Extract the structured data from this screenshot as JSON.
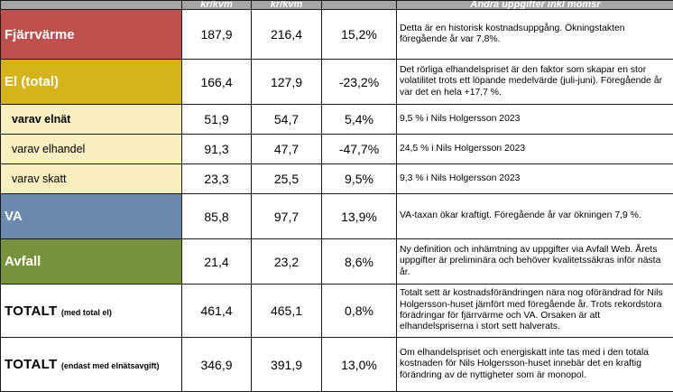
{
  "header": {
    "col1": "",
    "col2": "kr/kvm",
    "col3": "kr/kvm",
    "col4": "",
    "col5": "Andra uppgifter inkl momsr"
  },
  "rows": [
    {
      "label": "Fjärrvärme",
      "v1": "187,9",
      "v2": "216,4",
      "change": "15,2%",
      "note": "Detta är en historisk kostnadsuppgång. Ökningstakten föregående år var 7,8%."
    },
    {
      "label": "El (total)",
      "v1": "166,4",
      "v2": "127,9",
      "change": "-23,2%",
      "note": "Det rörliga elhandelspriset är den faktor som skapar en stor volatilitet trots ett löpande medelvärde (juli-juni). Föregående år var det en hela +17,7 %."
    },
    {
      "label": "varav elnät",
      "v1": "51,9",
      "v2": "54,7",
      "change": "5,4%",
      "note": "9,5  % i Nils Holgersson 2023"
    },
    {
      "label": "varav elhandel",
      "v1": "91,3",
      "v2": "47,7",
      "change": "-47,7%",
      "note": "24,5 % i Nils Holgersson 2023"
    },
    {
      "label": "varav skatt",
      "v1": "23,3",
      "v2": "25,5",
      "change": "9,5%",
      "note": "9,3 % i Nils Holgersson 2023"
    },
    {
      "label": "VA",
      "v1": "85,8",
      "v2": "97,7",
      "change": "13,9%",
      "note": "VA-taxan ökar kraftigt. Föregående år var ökningen 7,9 %."
    },
    {
      "label": "Avfall",
      "v1": "21,4",
      "v2": "23,2",
      "change": "8,6%",
      "note": "Ny definition och inhämtning av uppgifter via Avfall Web. Årets uppgifter är preliminära och behöver kvalitetssäkras inför nästa år."
    },
    {
      "label": "TOTALT",
      "label_small": "(med total el)",
      "v1": "461,4",
      "v2": "465,1",
      "change": "0,8%",
      "note": "Totalt sett är kostnadsförändringen nära nog oförändrad för Nils Holgersson-huset  jämfört med föregående år. Trots rekordstora förädringar för fjärrvärme och VA. Orsaken är att elhandelspriserna i stort sett halverats."
    },
    {
      "label": "TOTALT",
      "label_small": "(endast med elnätsavgift)",
      "v1": "346,9",
      "v2": "391,9",
      "change": "13,0%",
      "note": "Om elhandelspriset och energiskatt inte tas med i den totala kostnaden för Nils Holgersson-huset innebär det en kraftig förändring av de nyttigheter som är monopol."
    }
  ]
}
